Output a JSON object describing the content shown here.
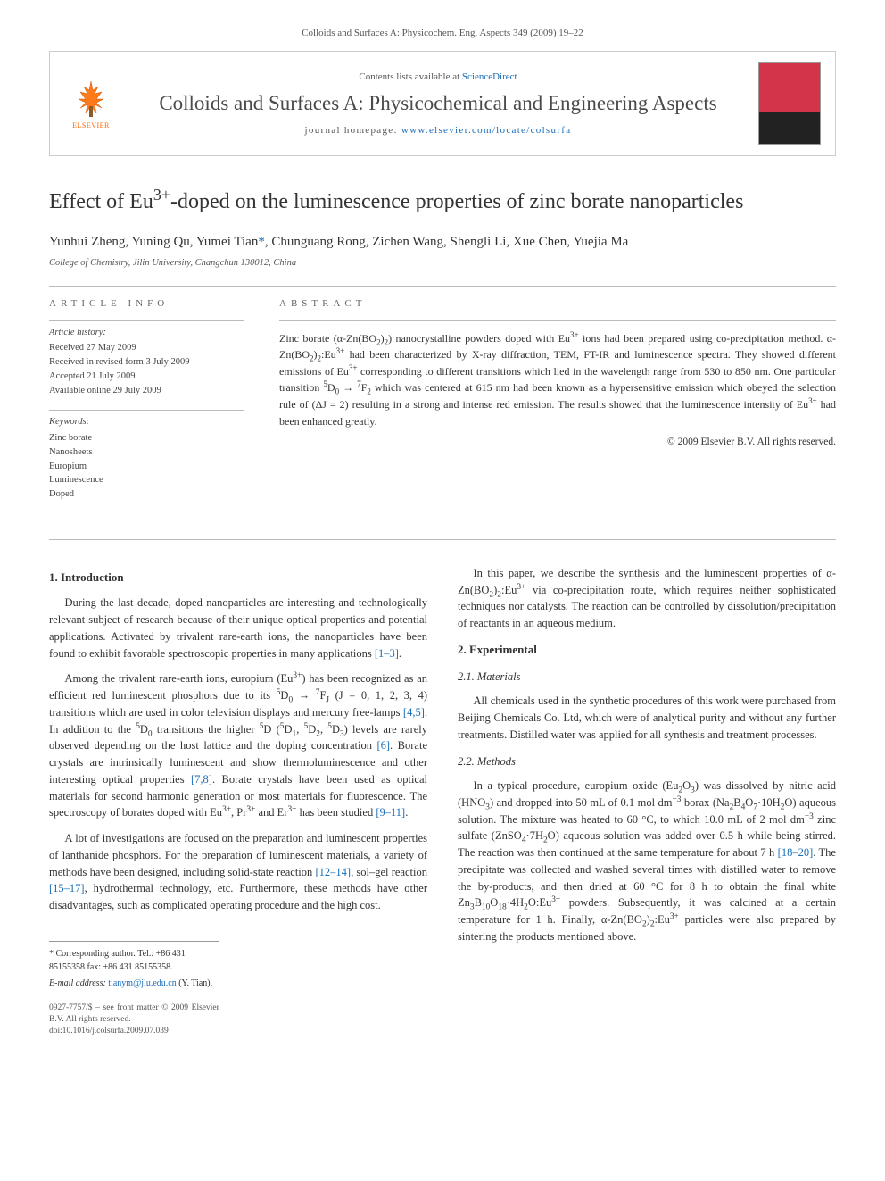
{
  "header": {
    "citation": "Colloids and Surfaces A: Physicochem. Eng. Aspects 349 (2009) 19–22"
  },
  "masthead": {
    "contents_prefix": "Contents lists available at ",
    "contents_link": "ScienceDirect",
    "journal_name": "Colloids and Surfaces A: Physicochemical and Engineering Aspects",
    "homepage_prefix": "journal homepage: ",
    "homepage_url": "www.elsevier.com/locate/colsurfa",
    "publisher_label": "ELSEVIER",
    "cover_label": "COLLOIDS AND SURFACES A"
  },
  "article": {
    "title_html": "Effect of Eu<sup>3+</sup>-doped on the luminescence properties of zinc borate nanoparticles",
    "authors_html": "Yunhui Zheng, Yuning Qu, Yumei Tian<a class='corr'>*</a>, Chunguang Rong, Zichen Wang, Shengli Li, Xue Chen, Yuejia Ma",
    "affiliation": "College of Chemistry, Jilin University, Changchun 130012, China"
  },
  "info": {
    "label": "ARTICLE INFO",
    "history_heading": "Article history:",
    "history": [
      "Received 27 May 2009",
      "Received in revised form 3 July 2009",
      "Accepted 21 July 2009",
      "Available online 29 July 2009"
    ],
    "keywords_heading": "Keywords:",
    "keywords": [
      "Zinc borate",
      "Nanosheets",
      "Europium",
      "Luminescence",
      "Doped"
    ]
  },
  "abstract": {
    "label": "ABSTRACT",
    "text_html": "Zinc borate (α-Zn(BO<sub>2</sub>)<sub>2</sub>) nanocrystalline powders doped with Eu<sup>3+</sup> ions had been prepared using co-precipitation method. α-Zn(BO<sub>2</sub>)<sub>2</sub>:Eu<sup>3+</sup> had been characterized by X-ray diffraction, TEM, FT-IR and luminescence spectra. They showed different emissions of Eu<sup>3+</sup> corresponding to different transitions which lied in the wavelength range from 530 to 850 nm. One particular transition <sup>5</sup>D<sub>0</sub> → <sup>7</sup>F<sub>2</sub> which was centered at 615 nm had been known as a hypersensitive emission which obeyed the selection rule of (ΔJ = 2) resulting in a strong and intense red emission. The results showed that the luminescence intensity of Eu<sup>3+</sup> had been enhanced greatly.",
    "copyright": "© 2009 Elsevier B.V. All rights reserved."
  },
  "body": {
    "sec1_heading": "1. Introduction",
    "sec1_p1_html": "During the last decade, doped nanoparticles are interesting and technologically relevant subject of research because of their unique optical properties and potential applications. Activated by trivalent rare-earth ions, the nanoparticles have been found to exhibit favorable spectroscopic properties in many applications <span class='ref'>[1–3]</span>.",
    "sec1_p2_html": "Among the trivalent rare-earth ions, europium (Eu<sup>3+</sup>) has been recognized as an efficient red luminescent phosphors due to its <sup>5</sup>D<sub>0</sub> → <sup>7</sup>F<sub>J</sub> (J = 0, 1, 2, 3, 4) transitions which are used in color television displays and mercury free-lamps <span class='ref'>[4,5]</span>. In addition to the <sup>5</sup>D<sub>0</sub> transitions the higher <sup>5</sup>D (<sup>5</sup>D<sub>1</sub>, <sup>5</sup>D<sub>2</sub>, <sup>5</sup>D<sub>3</sub>) levels are rarely observed depending on the host lattice and the doping concentration <span class='ref'>[6]</span>. Borate crystals are intrinsically luminescent and show thermoluminescence and other interesting optical properties <span class='ref'>[7,8]</span>. Borate crystals have been used as optical materials for second harmonic generation or most materials for fluorescence. The spectroscopy of borates doped with Eu<sup>3+</sup>, Pr<sup>3+</sup> and Er<sup>3+</sup> has been studied <span class='ref'>[9–11]</span>.",
    "sec1_p3_html": "A lot of investigations are focused on the preparation and luminescent properties of lanthanide phosphors. For the preparation of luminescent materials, a variety of methods have been designed, including solid-state reaction <span class='ref'>[12–14]</span>, sol–gel reaction <span class='ref'>[15–17]</span>, hydrothermal technology, etc. Furthermore, these methods have other disadvantages, such as complicated operating procedure and the high cost.",
    "sec1_p4_html": "In this paper, we describe the synthesis and the luminescent properties of α-Zn(BO<sub>2</sub>)<sub>2</sub>:Eu<sup>3+</sup> via co-precipitation route, which requires neither sophisticated techniques nor catalysts. The reaction can be controlled by dissolution/precipitation of reactants in an aqueous medium.",
    "sec2_heading": "2. Experimental",
    "sec2_1_heading": "2.1. Materials",
    "sec2_1_p1": "All chemicals used in the synthetic procedures of this work were purchased from Beijing Chemicals Co. Ltd, which were of analytical purity and without any further treatments. Distilled water was applied for all synthesis and treatment processes.",
    "sec2_2_heading": "2.2. Methods",
    "sec2_2_p1_html": "In a typical procedure, europium oxide (Eu<sub>2</sub>O<sub>3</sub>) was dissolved by nitric acid (HNO<sub>3</sub>) and dropped into 50 mL of 0.1 mol dm<sup>−3</sup> borax (Na<sub>2</sub>B<sub>4</sub>O<sub>7</sub>·10H<sub>2</sub>O) aqueous solution. The mixture was heated to 60 °C, to which 10.0 mL of 2 mol dm<sup>−3</sup> zinc sulfate (ZnSO<sub>4</sub>·7H<sub>2</sub>O) aqueous solution was added over 0.5 h while being stirred. The reaction was then continued at the same temperature for about 7 h <span class='ref'>[18–20]</span>. The precipitate was collected and washed several times with distilled water to remove the by-products, and then dried at 60 °C for 8 h to obtain the final white Zn<sub>3</sub>B<sub>10</sub>O<sub>18</sub>·4H<sub>2</sub>O:Eu<sup>3+</sup> powders. Subsequently, it was calcined at a certain temperature for 1 h. Finally, α-Zn(BO<sub>2</sub>)<sub>2</sub>:Eu<sup>3+</sup> particles were also prepared by sintering the products mentioned above."
  },
  "footnotes": {
    "corr_html": "* Corresponding author. Tel.: +86 431 85155358 fax: +86 431 85155358.",
    "email_label": "E-mail address:",
    "email": "tianym@jlu.edu.cn",
    "email_name": "(Y. Tian).",
    "front_matter": "0927-7757/$ – see front matter © 2009 Elsevier B.V. All rights reserved.",
    "doi": "doi:10.1016/j.colsurfa.2009.07.039"
  }
}
